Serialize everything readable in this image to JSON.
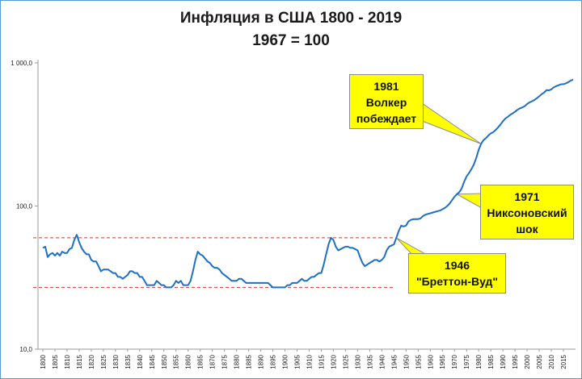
{
  "chart_data": {
    "type": "line",
    "title": "Инфляция в США 1800 - 2019",
    "subtitle": "1967 = 100",
    "xlabel": "",
    "ylabel": "",
    "yscale": "log",
    "xlim": [
      1798,
      2020
    ],
    "ylim": [
      10,
      1000
    ],
    "ytick_labels": [
      "10,0",
      "100,0",
      "1 000,0"
    ],
    "ytick_values": [
      10,
      100,
      1000
    ],
    "xtick_labels": [
      "1800",
      "1805",
      "1810",
      "1815",
      "1820",
      "1825",
      "1830",
      "1835",
      "1840",
      "1845",
      "1850",
      "1855",
      "1860",
      "1865",
      "1870",
      "1875",
      "1880",
      "1885",
      "1890",
      "1895",
      "1900",
      "1905",
      "1910",
      "1915",
      "1920",
      "1925",
      "1930",
      "1935",
      "1940",
      "1945",
      "1950",
      "1955",
      "1960",
      "1965",
      "1970",
      "1975",
      "1980",
      "1985",
      "1990",
      "1995",
      "2000",
      "2005",
      "2010",
      "2015"
    ],
    "series": [
      {
        "name": "",
        "color": "#1f6fc4",
        "points": [
          [
            1800,
            51
          ],
          [
            1801,
            52
          ],
          [
            1802,
            44
          ],
          [
            1803,
            46
          ],
          [
            1804,
            47
          ],
          [
            1805,
            45
          ],
          [
            1806,
            47
          ],
          [
            1807,
            45
          ],
          [
            1808,
            48
          ],
          [
            1809,
            47
          ],
          [
            1810,
            47
          ],
          [
            1811,
            50
          ],
          [
            1812,
            51
          ],
          [
            1813,
            58
          ],
          [
            1814,
            63
          ],
          [
            1815,
            56
          ],
          [
            1816,
            51
          ],
          [
            1817,
            48
          ],
          [
            1818,
            46
          ],
          [
            1819,
            46
          ],
          [
            1820,
            42
          ],
          [
            1821,
            41
          ],
          [
            1822,
            41
          ],
          [
            1823,
            38
          ],
          [
            1824,
            35
          ],
          [
            1825,
            36
          ],
          [
            1826,
            36
          ],
          [
            1827,
            36
          ],
          [
            1828,
            35
          ],
          [
            1829,
            34
          ],
          [
            1830,
            34
          ],
          [
            1831,
            32
          ],
          [
            1832,
            32
          ],
          [
            1833,
            31
          ],
          [
            1834,
            32
          ],
          [
            1835,
            33
          ],
          [
            1836,
            35
          ],
          [
            1837,
            35
          ],
          [
            1838,
            34
          ],
          [
            1839,
            34
          ],
          [
            1840,
            32
          ],
          [
            1841,
            32
          ],
          [
            1842,
            30
          ],
          [
            1843,
            28
          ],
          [
            1844,
            28
          ],
          [
            1845,
            28
          ],
          [
            1846,
            28
          ],
          [
            1847,
            30
          ],
          [
            1848,
            29
          ],
          [
            1849,
            28
          ],
          [
            1850,
            28
          ],
          [
            1851,
            27
          ],
          [
            1852,
            27
          ],
          [
            1853,
            27
          ],
          [
            1854,
            28
          ],
          [
            1855,
            30
          ],
          [
            1856,
            29
          ],
          [
            1857,
            30
          ],
          [
            1858,
            28
          ],
          [
            1859,
            28
          ],
          [
            1860,
            28
          ],
          [
            1861,
            30
          ],
          [
            1862,
            35
          ],
          [
            1863,
            42
          ],
          [
            1864,
            48
          ],
          [
            1865,
            46
          ],
          [
            1866,
            45
          ],
          [
            1867,
            43
          ],
          [
            1868,
            41
          ],
          [
            1869,
            40
          ],
          [
            1870,
            38
          ],
          [
            1871,
            37
          ],
          [
            1872,
            37
          ],
          [
            1873,
            36
          ],
          [
            1874,
            34
          ],
          [
            1875,
            33
          ],
          [
            1876,
            32
          ],
          [
            1877,
            31
          ],
          [
            1878,
            30
          ],
          [
            1879,
            30
          ],
          [
            1880,
            30
          ],
          [
            1881,
            31
          ],
          [
            1882,
            31
          ],
          [
            1883,
            30
          ],
          [
            1884,
            29
          ],
          [
            1885,
            29
          ],
          [
            1886,
            29
          ],
          [
            1887,
            29
          ],
          [
            1888,
            29
          ],
          [
            1889,
            29
          ],
          [
            1890,
            29
          ],
          [
            1891,
            29
          ],
          [
            1892,
            29
          ],
          [
            1893,
            29
          ],
          [
            1894,
            28
          ],
          [
            1895,
            27
          ],
          [
            1896,
            27
          ],
          [
            1897,
            27
          ],
          [
            1898,
            27
          ],
          [
            1899,
            27
          ],
          [
            1900,
            27
          ],
          [
            1901,
            28
          ],
          [
            1902,
            28
          ],
          [
            1903,
            29
          ],
          [
            1904,
            29
          ],
          [
            1905,
            29
          ],
          [
            1906,
            30
          ],
          [
            1907,
            31
          ],
          [
            1908,
            30
          ],
          [
            1909,
            30
          ],
          [
            1910,
            31
          ],
          [
            1911,
            32
          ],
          [
            1912,
            32
          ],
          [
            1913,
            33
          ],
          [
            1914,
            34
          ],
          [
            1915,
            34
          ],
          [
            1916,
            39
          ],
          [
            1917,
            46
          ],
          [
            1918,
            54
          ],
          [
            1919,
            60
          ],
          [
            1920,
            58
          ],
          [
            1921,
            52
          ],
          [
            1922,
            49
          ],
          [
            1923,
            50
          ],
          [
            1924,
            51
          ],
          [
            1925,
            52
          ],
          [
            1926,
            52
          ],
          [
            1927,
            51
          ],
          [
            1928,
            51
          ],
          [
            1929,
            50
          ],
          [
            1930,
            49
          ],
          [
            1931,
            44
          ],
          [
            1932,
            40
          ],
          [
            1933,
            38
          ],
          [
            1934,
            39
          ],
          [
            1935,
            40
          ],
          [
            1936,
            41
          ],
          [
            1937,
            42
          ],
          [
            1938,
            42
          ],
          [
            1939,
            41
          ],
          [
            1940,
            42
          ],
          [
            1941,
            44
          ],
          [
            1942,
            49
          ],
          [
            1943,
            52
          ],
          [
            1944,
            53
          ],
          [
            1945,
            54
          ],
          [
            1946,
            60
          ],
          [
            1947,
            67
          ],
          [
            1948,
            73
          ],
          [
            1949,
            72
          ],
          [
            1950,
            73
          ],
          [
            1951,
            78
          ],
          [
            1952,
            80
          ],
          [
            1953,
            81
          ],
          [
            1954,
            81
          ],
          [
            1955,
            81
          ],
          [
            1956,
            82
          ],
          [
            1957,
            85
          ],
          [
            1958,
            87
          ],
          [
            1959,
            88
          ],
          [
            1960,
            89
          ],
          [
            1961,
            90
          ],
          [
            1962,
            91
          ],
          [
            1963,
            92
          ],
          [
            1964,
            93
          ],
          [
            1965,
            95
          ],
          [
            1966,
            97
          ],
          [
            1967,
            100
          ],
          [
            1968,
            104
          ],
          [
            1969,
            110
          ],
          [
            1970,
            116
          ],
          [
            1971,
            121
          ],
          [
            1972,
            125
          ],
          [
            1973,
            133
          ],
          [
            1974,
            148
          ],
          [
            1975,
            161
          ],
          [
            1976,
            170
          ],
          [
            1977,
            181
          ],
          [
            1978,
            195
          ],
          [
            1979,
            217
          ],
          [
            1980,
            247
          ],
          [
            1981,
            272
          ],
          [
            1982,
            289
          ],
          [
            1983,
            298
          ],
          [
            1984,
            311
          ],
          [
            1985,
            322
          ],
          [
            1986,
            328
          ],
          [
            1987,
            340
          ],
          [
            1988,
            354
          ],
          [
            1989,
            371
          ],
          [
            1990,
            391
          ],
          [
            1991,
            408
          ],
          [
            1992,
            420
          ],
          [
            1993,
            433
          ],
          [
            1994,
            444
          ],
          [
            1995,
            456
          ],
          [
            1996,
            470
          ],
          [
            1997,
            481
          ],
          [
            1998,
            488
          ],
          [
            1999,
            499
          ],
          [
            2000,
            516
          ],
          [
            2001,
            530
          ],
          [
            2002,
            539
          ],
          [
            2003,
            551
          ],
          [
            2004,
            566
          ],
          [
            2005,
            585
          ],
          [
            2006,
            604
          ],
          [
            2007,
            621
          ],
          [
            2008,
            645
          ],
          [
            2009,
            643
          ],
          [
            2010,
            653
          ],
          [
            2011,
            674
          ],
          [
            2012,
            688
          ],
          [
            2013,
            698
          ],
          [
            2014,
            709
          ],
          [
            2015,
            710
          ],
          [
            2016,
            719
          ],
          [
            2017,
            734
          ],
          [
            2018,
            752
          ],
          [
            2019,
            766
          ]
        ]
      }
    ],
    "reference_lines": [
      {
        "value": 60,
        "from": 1800,
        "to": 1946,
        "color": "#e03030",
        "style": "dashed"
      },
      {
        "value": 27,
        "from": 1800,
        "to": 1946,
        "color": "#e03030",
        "style": "dashed"
      }
    ],
    "annotations": [
      {
        "lines": [
          "1981",
          "Волкер",
          "побеждает"
        ],
        "x": 1981
      },
      {
        "lines": [
          "1971",
          "Никсоновский",
          "шок"
        ],
        "x": 1971
      },
      {
        "lines": [
          "1946",
          "\"Бреттон-Вуд\""
        ],
        "x": 1946
      }
    ],
    "grid": false,
    "legend": "none"
  }
}
